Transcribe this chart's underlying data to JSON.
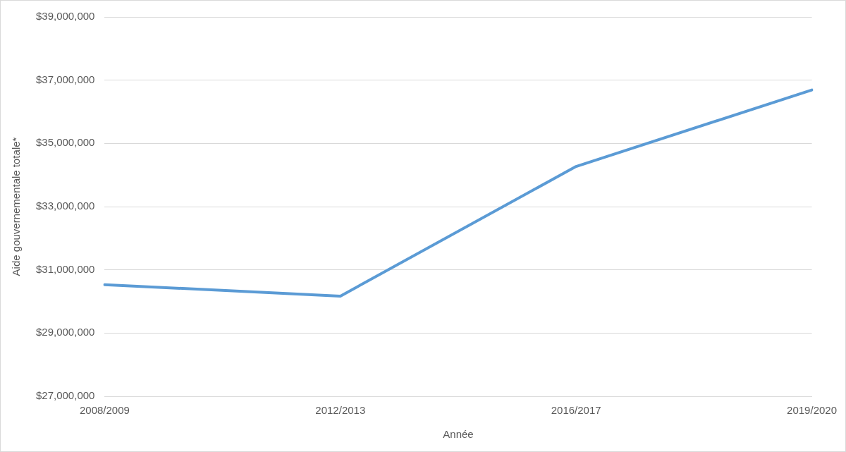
{
  "chart_data": {
    "type": "line",
    "xlabel": "Année",
    "ylabel": "Aide gouvernementale totale*",
    "categories": [
      "2008/2009",
      "2012/2013",
      "2016/2017",
      "2019/2020"
    ],
    "series": [
      {
        "color": "#5b9bd5",
        "values": [
          30530000,
          30170000,
          34270000,
          36690000
        ]
      }
    ],
    "ylim": [
      27000000,
      39000000
    ],
    "yticks": [
      {
        "value": 27000000,
        "label": "$27,000,000"
      },
      {
        "value": 29000000,
        "label": "$29,000,000"
      },
      {
        "value": 31000000,
        "label": "$31,000,000"
      },
      {
        "value": 33000000,
        "label": "$33,000,000"
      },
      {
        "value": 35000000,
        "label": "$35,000,000"
      },
      {
        "value": 37000000,
        "label": "$37,000,000"
      },
      {
        "value": 39000000,
        "label": "$39,000,000"
      }
    ],
    "grid": "y",
    "legend": false,
    "marker": "none",
    "line_style": "solid"
  }
}
